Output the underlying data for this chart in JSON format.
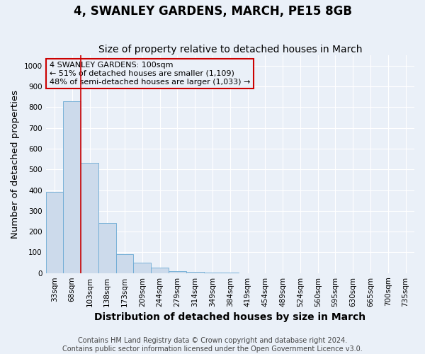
{
  "title": "4, SWANLEY GARDENS, MARCH, PE15 8GB",
  "subtitle": "Size of property relative to detached houses in March",
  "xlabel": "Distribution of detached houses by size in March",
  "ylabel": "Number of detached properties",
  "bar_color": "#ccdaeb",
  "bar_edge_color": "#6aaad4",
  "categories": [
    "33sqm",
    "68sqm",
    "103sqm",
    "138sqm",
    "173sqm",
    "209sqm",
    "244sqm",
    "279sqm",
    "314sqm",
    "349sqm",
    "384sqm",
    "419sqm",
    "454sqm",
    "489sqm",
    "524sqm",
    "560sqm",
    "595sqm",
    "630sqm",
    "665sqm",
    "700sqm",
    "735sqm"
  ],
  "values": [
    390,
    830,
    530,
    240,
    90,
    50,
    25,
    10,
    5,
    2,
    1,
    0,
    0,
    0,
    0,
    0,
    0,
    0,
    0,
    0,
    0
  ],
  "red_line_x": 1.5,
  "annotation_text": "4 SWANLEY GARDENS: 100sqm\n← 51% of detached houses are smaller (1,109)\n48% of semi-detached houses are larger (1,033) →",
  "annotation_box_color": "#cc0000",
  "ylim": [
    0,
    1050
  ],
  "yticks": [
    0,
    100,
    200,
    300,
    400,
    500,
    600,
    700,
    800,
    900,
    1000
  ],
  "footnote": "Contains HM Land Registry data © Crown copyright and database right 2024.\nContains public sector information licensed under the Open Government Licence v3.0.",
  "background_color": "#eaf0f8",
  "grid_color": "#ffffff",
  "title_fontsize": 12,
  "subtitle_fontsize": 10,
  "axis_label_fontsize": 9.5,
  "tick_fontsize": 7.5,
  "footnote_fontsize": 7,
  "ann_fontsize": 8
}
